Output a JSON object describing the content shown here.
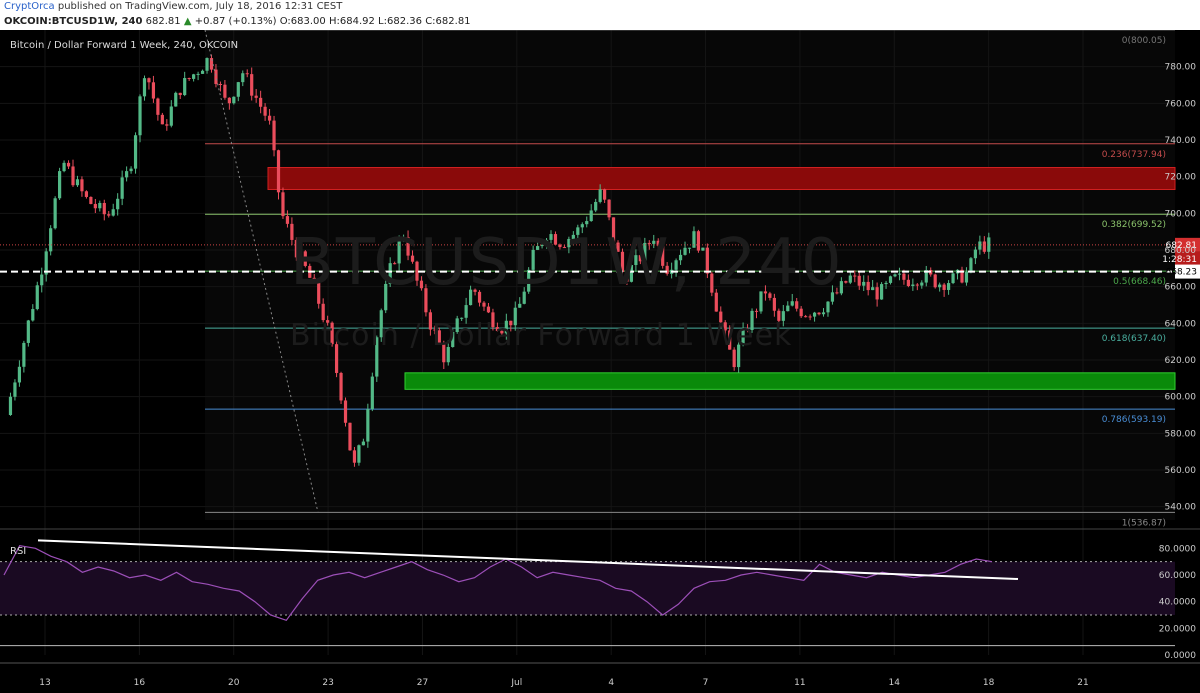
{
  "header": {
    "author": "CryptOrca",
    "published": "published on TradingView.com, July 18, 2016 12:31 CEST",
    "symbol": "OKCOIN:BTCUSD1W, 240",
    "arrow": "▲",
    "change": "+0.87 (+0.13%)",
    "o_label": "O:",
    "o_value": "683.00",
    "h_label": "H:",
    "h_value": "684.92",
    "l_label": "L:",
    "l_value": "682.36",
    "c_label": "C:",
    "c_value": "682.81",
    "last": "682.81"
  },
  "chart_title": "Bitcoin / Dollar Forward 1 Week, 240, OKCOIN",
  "watermark": {
    "symbol": "BTCUSD1W, 240",
    "name": "Bitcoin / Dollar Forward 1 Week"
  },
  "colors": {
    "up": "#53b987",
    "down": "#eb4d5c",
    "rsi": "#9c4fb8",
    "support_zone": "#0a8a0a",
    "resistance_zone": "#8a0a0a"
  },
  "chart_data": {
    "type": "candlestick",
    "title": "Bitcoin / Dollar Forward 1 Week, 240, OKCOIN",
    "ylim": [
      530,
      800
    ],
    "y_ticks": [
      "780.00",
      "760.00",
      "740.00",
      "720.00",
      "700.00",
      "680.00",
      "660.00",
      "640.00",
      "620.00",
      "600.00",
      "580.00",
      "560.00",
      "540.00"
    ],
    "x_ticks": [
      "13",
      "16",
      "20",
      "23",
      "27",
      "Jul",
      "4",
      "7",
      "11",
      "14",
      "18",
      "21"
    ],
    "close_path": [
      {
        "x": 0,
        "y": 590
      },
      {
        "x": 1.4,
        "y": 668
      },
      {
        "x": 2.3,
        "y": 728
      },
      {
        "x": 3.2,
        "y": 708
      },
      {
        "x": 4.1,
        "y": 698
      },
      {
        "x": 5.0,
        "y": 725
      },
      {
        "x": 5.6,
        "y": 780
      },
      {
        "x": 6.3,
        "y": 745
      },
      {
        "x": 7.0,
        "y": 768
      },
      {
        "x": 8.2,
        "y": 785
      },
      {
        "x": 8.9,
        "y": 758
      },
      {
        "x": 9.5,
        "y": 778
      },
      {
        "x": 10.0,
        "y": 765
      },
      {
        "x": 10.6,
        "y": 750
      },
      {
        "x": 11.1,
        "y": 700
      },
      {
        "x": 11.7,
        "y": 680
      },
      {
        "x": 12.4,
        "y": 660
      },
      {
        "x": 13.0,
        "y": 635
      },
      {
        "x": 13.6,
        "y": 595
      },
      {
        "x": 14.0,
        "y": 560
      },
      {
        "x": 14.4,
        "y": 578
      },
      {
        "x": 15.0,
        "y": 640
      },
      {
        "x": 15.5,
        "y": 670
      },
      {
        "x": 16.0,
        "y": 690
      },
      {
        "x": 16.5,
        "y": 665
      },
      {
        "x": 17.1,
        "y": 640
      },
      {
        "x": 17.7,
        "y": 620
      },
      {
        "x": 18.2,
        "y": 640
      },
      {
        "x": 18.8,
        "y": 660
      },
      {
        "x": 19.4,
        "y": 645
      },
      {
        "x": 20.0,
        "y": 638
      },
      {
        "x": 20.6,
        "y": 645
      },
      {
        "x": 21.2,
        "y": 675
      },
      {
        "x": 21.8,
        "y": 690
      },
      {
        "x": 22.4,
        "y": 684
      },
      {
        "x": 23.0,
        "y": 690
      },
      {
        "x": 23.5,
        "y": 700
      },
      {
        "x": 24.0,
        "y": 712
      },
      {
        "x": 24.4,
        "y": 690
      },
      {
        "x": 24.9,
        "y": 665
      },
      {
        "x": 25.5,
        "y": 675
      },
      {
        "x": 26.1,
        "y": 688
      },
      {
        "x": 26.6,
        "y": 670
      },
      {
        "x": 27.2,
        "y": 680
      },
      {
        "x": 27.8,
        "y": 688
      },
      {
        "x": 28.3,
        "y": 668
      },
      {
        "x": 28.8,
        "y": 640
      },
      {
        "x": 29.3,
        "y": 618
      },
      {
        "x": 29.9,
        "y": 640
      },
      {
        "x": 30.6,
        "y": 658
      },
      {
        "x": 31.1,
        "y": 640
      },
      {
        "x": 31.6,
        "y": 650
      },
      {
        "x": 32.2,
        "y": 646
      },
      {
        "x": 32.8,
        "y": 648
      },
      {
        "x": 33.4,
        "y": 655
      },
      {
        "x": 34.0,
        "y": 665
      },
      {
        "x": 34.6,
        "y": 660
      },
      {
        "x": 35.2,
        "y": 656
      },
      {
        "x": 35.8,
        "y": 664
      },
      {
        "x": 36.4,
        "y": 664
      },
      {
        "x": 37.0,
        "y": 666
      },
      {
        "x": 37.6,
        "y": 662
      },
      {
        "x": 38.2,
        "y": 664
      },
      {
        "x": 38.8,
        "y": 668
      },
      {
        "x": 39.1,
        "y": 682
      },
      {
        "x": 39.6,
        "y": 683
      }
    ],
    "x_range": [
      0,
      44
    ],
    "fibonacci": [
      {
        "label": "0(800.05)",
        "value": 800.05
      },
      {
        "label": "0.236(737.94)",
        "value": 737.94
      },
      {
        "label": "0.382(699.52)",
        "value": 699.52
      },
      {
        "label": "0.5(668.46)",
        "value": 668.46
      },
      {
        "label": "0.618(637.40)",
        "value": 637.4
      },
      {
        "label": "0.786(593.19)",
        "value": 593.19
      },
      {
        "label": "1(536.87)",
        "value": 536.87
      }
    ],
    "price_labels": {
      "last": "682.81",
      "countdown": "1:28:31",
      "line": "668.23"
    },
    "horizontal_line": 668.23,
    "resistance_zone": [
      713,
      725
    ],
    "support_zone": [
      604,
      613
    ],
    "rsi": {
      "label": "RSI",
      "ylim": [
        0,
        90
      ],
      "y_ticks": [
        "80.0000",
        "60.0000",
        "40.0000",
        "20.0000",
        "0.0000"
      ],
      "bands": [
        70,
        30
      ],
      "values": [
        60,
        82,
        80,
        74,
        70,
        62,
        66,
        63,
        58,
        60,
        56,
        62,
        55,
        53,
        50,
        48,
        40,
        30,
        26,
        42,
        56,
        60,
        62,
        58,
        62,
        66,
        70,
        64,
        60,
        55,
        58,
        66,
        72,
        66,
        58,
        62,
        60,
        58,
        56,
        50,
        48,
        40,
        30,
        38,
        50,
        55,
        56,
        60,
        62,
        60,
        58,
        56,
        68,
        62,
        60,
        58,
        62,
        60,
        58,
        60,
        62,
        68,
        72,
        70
      ]
    }
  }
}
